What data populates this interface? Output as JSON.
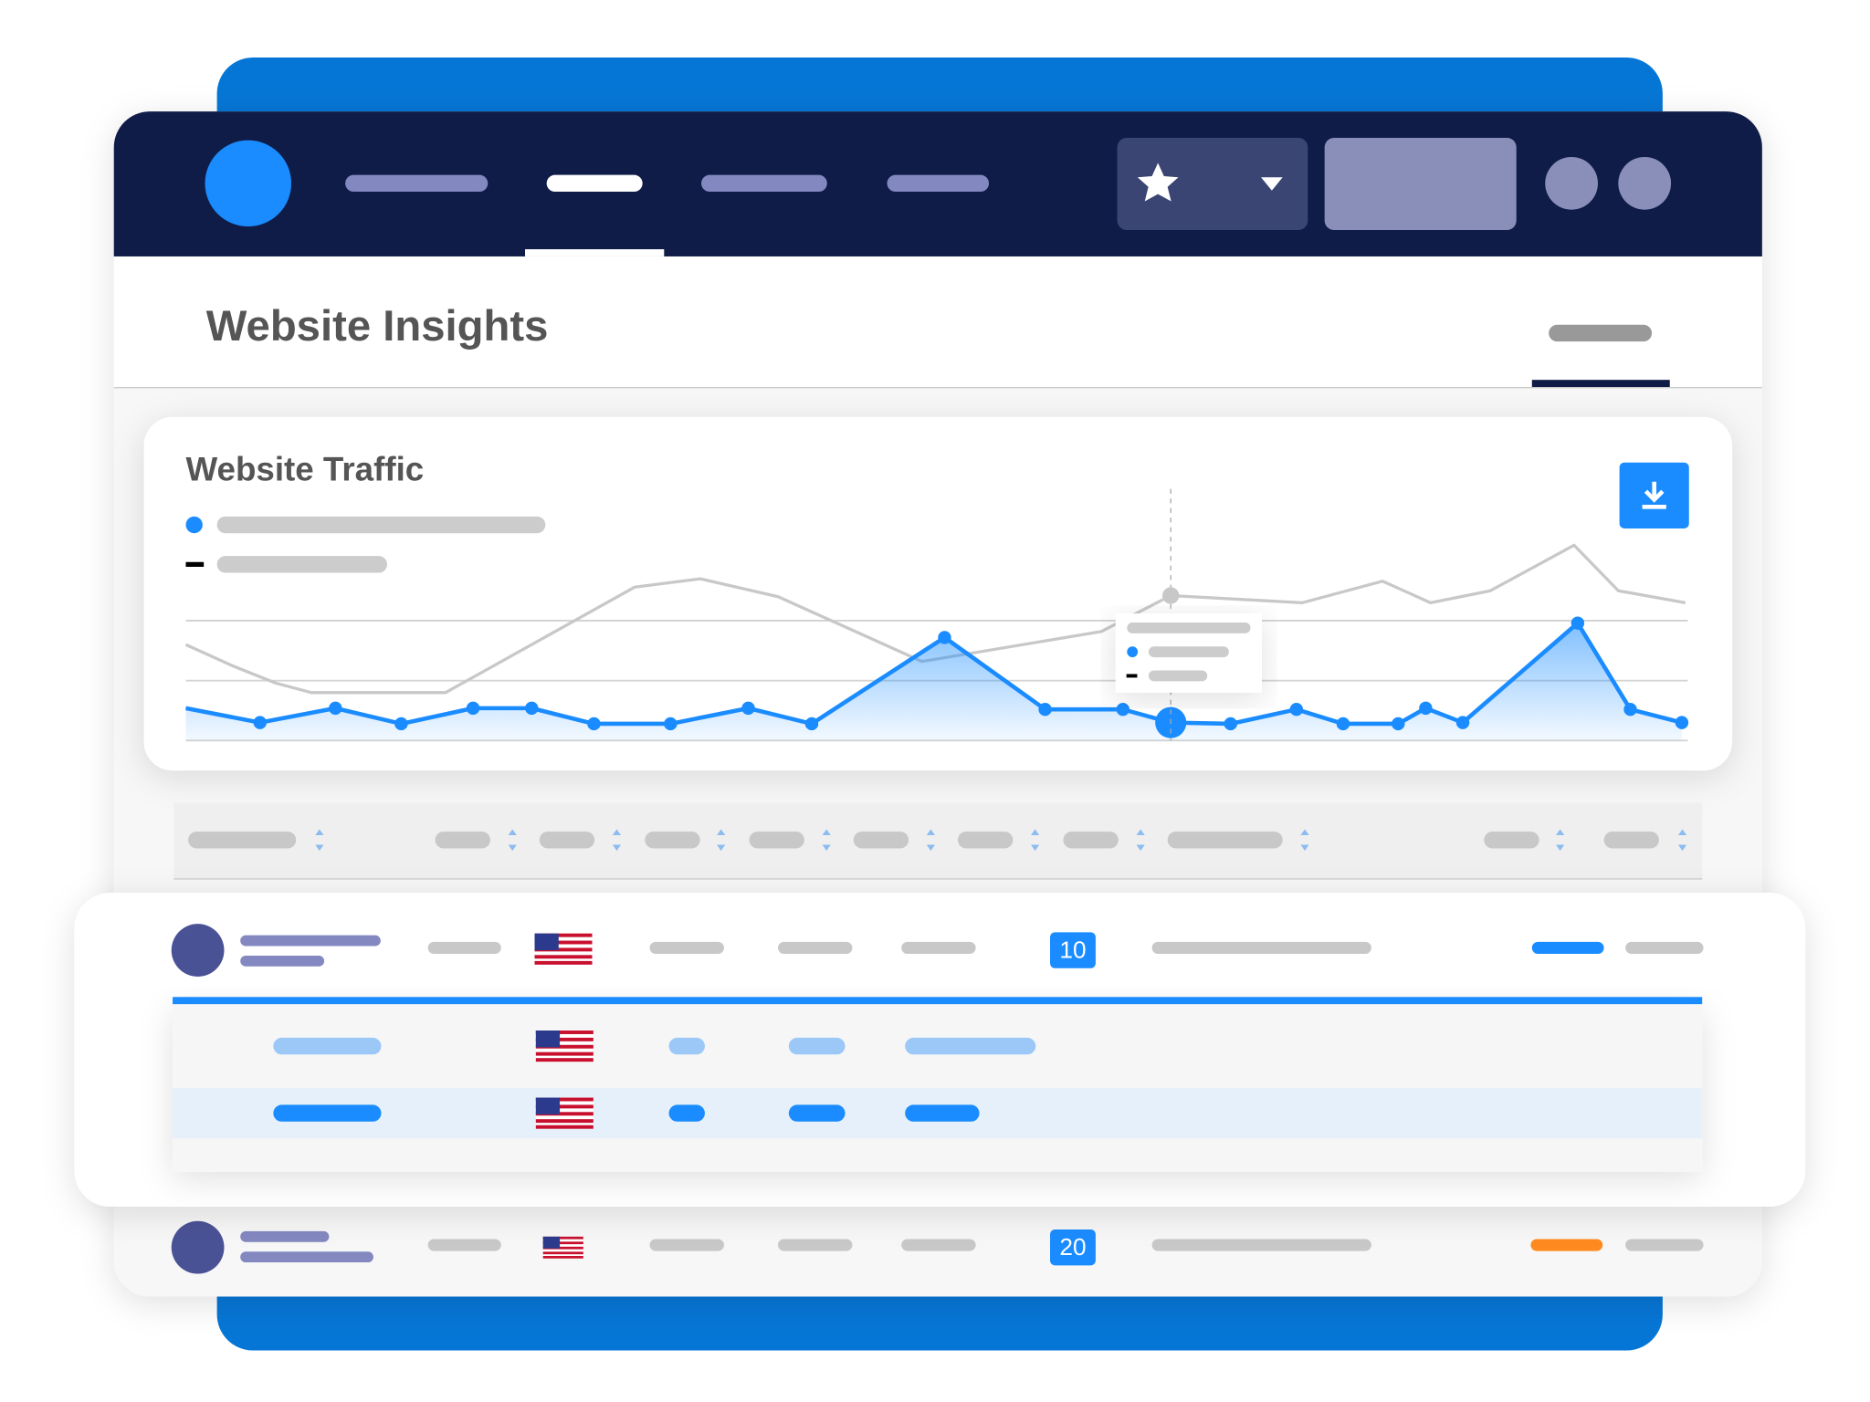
{
  "header": {
    "title": "Website Insights"
  },
  "chart_data": {
    "type": "line",
    "title": "Website Traffic",
    "xlim": [
      0,
      25.1
    ],
    "ylim": [
      0,
      4.2
    ],
    "gridlines": [
      0,
      1,
      2
    ],
    "highlight_index": 13,
    "series": [
      {
        "color": "#1a8cff",
        "area": true,
        "x": [
          0,
          1.24,
          2.5,
          3.6,
          4.8,
          5.78,
          6.82,
          8.1,
          9.4,
          10.46,
          12.68,
          14.36,
          15.66,
          16.46,
          17.46,
          18.56,
          19.34,
          20.26,
          20.72,
          21.34,
          23.26,
          24.14,
          25
        ],
        "values": [
          0.54,
          0.3,
          0.54,
          0.28,
          0.54,
          0.54,
          0.28,
          0.28,
          0.54,
          0.28,
          1.72,
          0.52,
          0.52,
          0.3,
          0.28,
          0.52,
          0.28,
          0.28,
          0.54,
          0.3,
          1.96,
          0.52,
          0.3
        ]
      },
      {
        "color": "#c8c8c8",
        "x": [
          0,
          0.8,
          1.5,
          2.1,
          4.34,
          7.5,
          8.6,
          9.9,
          12.3,
          15.3,
          16.46,
          18.66,
          20,
          20.8,
          21.8,
          23.2,
          23.94,
          25.06
        ],
        "values": [
          1.6,
          1.24,
          0.96,
          0.8,
          0.8,
          2.56,
          2.7,
          2.4,
          1.32,
          1.82,
          2.42,
          2.3,
          2.66,
          2.3,
          2.5,
          3.26,
          2.5,
          2.3
        ]
      }
    ]
  },
  "table": {
    "rows": [
      {
        "badge": "10"
      },
      {
        "badge": "20"
      }
    ]
  }
}
